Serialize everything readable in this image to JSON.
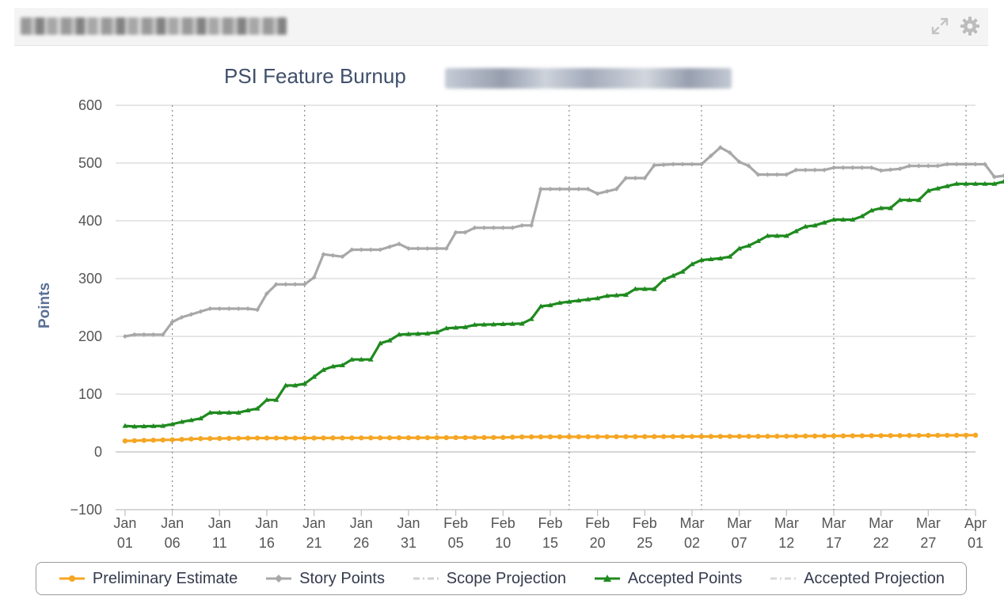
{
  "header": {
    "title": "",
    "icons": [
      "expand-icon",
      "gear-icon"
    ]
  },
  "chart_data": {
    "type": "line",
    "title": "PSI Feature Burnup",
    "ylabel": "Points",
    "ylim": [
      -100,
      600
    ],
    "yticks": [
      -100,
      0,
      100,
      200,
      300,
      400,
      500,
      600
    ],
    "x_tick_labels": [
      [
        "Jan",
        "01"
      ],
      [
        "Jan",
        "06"
      ],
      [
        "Jan",
        "11"
      ],
      [
        "Jan",
        "16"
      ],
      [
        "Jan",
        "21"
      ],
      [
        "Jan",
        "26"
      ],
      [
        "Jan",
        "31"
      ],
      [
        "Feb",
        "05"
      ],
      [
        "Feb",
        "10"
      ],
      [
        "Feb",
        "15"
      ],
      [
        "Feb",
        "20"
      ],
      [
        "Feb",
        "25"
      ],
      [
        "Mar",
        "02"
      ],
      [
        "Mar",
        "07"
      ],
      [
        "Mar",
        "12"
      ],
      [
        "Mar",
        "17"
      ],
      [
        "Mar",
        "22"
      ],
      [
        "Mar",
        "27"
      ],
      [
        "Apr",
        "01"
      ]
    ],
    "x_tick_dates": [
      "2014-01-01",
      "2014-01-06",
      "2014-01-11",
      "2014-01-16",
      "2014-01-21",
      "2014-01-26",
      "2014-01-31",
      "2014-02-05",
      "2014-02-10",
      "2014-02-15",
      "2014-02-20",
      "2014-02-25",
      "2014-03-02",
      "2014-03-07",
      "2014-03-12",
      "2014-03-17",
      "2014-03-22",
      "2014-03-27",
      "2014-04-01"
    ],
    "x_range": [
      "2013-12-31",
      "2014-04-01"
    ],
    "iteration_boundaries": [
      "2014-01-06",
      "2014-01-20",
      "2014-02-03",
      "2014-02-17",
      "2014-03-03",
      "2014-03-17",
      "2014-03-31"
    ],
    "grid": "horizontal",
    "legend_placement": "bottom",
    "colors": {
      "preliminary": "#f5a623",
      "story": "#a8a8a8",
      "scope_projection": "#d0d0d0",
      "accepted": "#1f8a1f",
      "accepted_projection": "#d8d8d8"
    },
    "series": [
      {
        "name": "Preliminary Estimate",
        "marker": "circle",
        "points": [
          [
            "2014-01-01",
            19
          ],
          [
            "2014-01-03",
            20
          ],
          [
            "2014-01-06",
            21
          ],
          [
            "2014-01-09",
            23
          ],
          [
            "2014-01-15",
            24
          ],
          [
            "2014-01-20",
            24
          ],
          [
            "2014-02-10",
            25
          ],
          [
            "2014-02-12",
            26
          ],
          [
            "2014-03-10",
            27
          ],
          [
            "2014-03-20",
            28
          ],
          [
            "2014-04-01",
            29
          ]
        ]
      },
      {
        "name": "Story Points",
        "marker": "diamond",
        "points": [
          [
            "2014-01-01",
            200
          ],
          [
            "2014-01-02",
            203
          ],
          [
            "2014-01-05",
            203
          ],
          [
            "2014-01-06",
            225
          ],
          [
            "2014-01-07",
            233
          ],
          [
            "2014-01-08",
            238
          ],
          [
            "2014-01-10",
            248
          ],
          [
            "2014-01-14",
            248
          ],
          [
            "2014-01-15",
            246
          ],
          [
            "2014-01-16",
            274
          ],
          [
            "2014-01-17",
            290
          ],
          [
            "2014-01-20",
            290
          ],
          [
            "2014-01-21",
            302
          ],
          [
            "2014-01-22",
            342
          ],
          [
            "2014-01-23",
            340
          ],
          [
            "2014-01-24",
            338
          ],
          [
            "2014-01-25",
            350
          ],
          [
            "2014-01-28",
            350
          ],
          [
            "2014-01-29",
            355
          ],
          [
            "2014-01-30",
            360
          ],
          [
            "2014-01-31",
            352
          ],
          [
            "2014-02-04",
            352
          ],
          [
            "2014-02-05",
            380
          ],
          [
            "2014-02-06",
            380
          ],
          [
            "2014-02-07",
            388
          ],
          [
            "2014-02-11",
            388
          ],
          [
            "2014-02-12",
            392
          ],
          [
            "2014-02-13",
            392
          ],
          [
            "2014-02-14",
            455
          ],
          [
            "2014-02-19",
            455
          ],
          [
            "2014-02-20",
            447
          ],
          [
            "2014-02-22",
            455
          ],
          [
            "2014-02-23",
            474
          ],
          [
            "2014-02-25",
            474
          ],
          [
            "2014-02-26",
            496
          ],
          [
            "2014-02-28",
            498
          ],
          [
            "2014-03-03",
            498
          ],
          [
            "2014-03-05",
            527
          ],
          [
            "2014-03-06",
            518
          ],
          [
            "2014-03-07",
            502
          ],
          [
            "2014-03-08",
            495
          ],
          [
            "2014-03-09",
            480
          ],
          [
            "2014-03-12",
            480
          ],
          [
            "2014-03-13",
            488
          ],
          [
            "2014-03-16",
            488
          ],
          [
            "2014-03-17",
            492
          ],
          [
            "2014-03-21",
            492
          ],
          [
            "2014-03-22",
            487
          ],
          [
            "2014-03-24",
            490
          ],
          [
            "2014-03-25",
            495
          ],
          [
            "2014-03-28",
            495
          ],
          [
            "2014-03-29",
            498
          ],
          [
            "2014-04-02",
            498
          ],
          [
            "2014-04-03",
            476
          ],
          [
            "2014-04-04",
            478
          ]
        ]
      },
      {
        "name": "Scope Projection",
        "marker": "none",
        "points": []
      },
      {
        "name": "Accepted Points",
        "marker": "triangle",
        "points": [
          [
            "2014-01-01",
            45
          ],
          [
            "2014-01-02",
            44
          ],
          [
            "2014-01-05",
            45
          ],
          [
            "2014-01-06",
            48
          ],
          [
            "2014-01-07",
            52
          ],
          [
            "2014-01-08",
            55
          ],
          [
            "2014-01-09",
            58
          ],
          [
            "2014-01-10",
            68
          ],
          [
            "2014-01-13",
            68
          ],
          [
            "2014-01-14",
            72
          ],
          [
            "2014-01-15",
            75
          ],
          [
            "2014-01-16",
            90
          ],
          [
            "2014-01-17",
            90
          ],
          [
            "2014-01-18",
            115
          ],
          [
            "2014-01-19",
            115
          ],
          [
            "2014-01-20",
            118
          ],
          [
            "2014-01-21",
            130
          ],
          [
            "2014-01-22",
            142
          ],
          [
            "2014-01-23",
            148
          ],
          [
            "2014-01-24",
            150
          ],
          [
            "2014-01-25",
            160
          ],
          [
            "2014-01-27",
            160
          ],
          [
            "2014-01-28",
            188
          ],
          [
            "2014-01-29",
            193
          ],
          [
            "2014-01-30",
            203
          ],
          [
            "2014-01-31",
            204
          ],
          [
            "2014-02-02",
            205
          ],
          [
            "2014-02-03",
            207
          ],
          [
            "2014-02-04",
            214
          ],
          [
            "2014-02-06",
            216
          ],
          [
            "2014-02-07",
            220
          ],
          [
            "2014-02-12",
            222
          ],
          [
            "2014-02-13",
            230
          ],
          [
            "2014-02-14",
            252
          ],
          [
            "2014-02-15",
            254
          ],
          [
            "2014-02-16",
            258
          ],
          [
            "2014-02-18",
            262
          ],
          [
            "2014-02-20",
            266
          ],
          [
            "2014-02-21",
            270
          ],
          [
            "2014-02-23",
            272
          ],
          [
            "2014-02-24",
            282
          ],
          [
            "2014-02-26",
            282
          ],
          [
            "2014-02-27",
            298
          ],
          [
            "2014-03-01",
            312
          ],
          [
            "2014-03-02",
            325
          ],
          [
            "2014-03-03",
            332
          ],
          [
            "2014-03-05",
            335
          ],
          [
            "2014-03-06",
            338
          ],
          [
            "2014-03-07",
            352
          ],
          [
            "2014-03-08",
            357
          ],
          [
            "2014-03-09",
            365
          ],
          [
            "2014-03-10",
            374
          ],
          [
            "2014-03-12",
            374
          ],
          [
            "2014-03-13",
            382
          ],
          [
            "2014-03-14",
            390
          ],
          [
            "2014-03-15",
            392
          ],
          [
            "2014-03-17",
            402
          ],
          [
            "2014-03-19",
            402
          ],
          [
            "2014-03-20",
            408
          ],
          [
            "2014-03-21",
            418
          ],
          [
            "2014-03-22",
            422
          ],
          [
            "2014-03-23",
            422
          ],
          [
            "2014-03-24",
            436
          ],
          [
            "2014-03-26",
            436
          ],
          [
            "2014-03-27",
            452
          ],
          [
            "2014-03-28",
            456
          ],
          [
            "2014-03-29",
            460
          ],
          [
            "2014-03-30",
            464
          ],
          [
            "2014-04-03",
            464
          ],
          [
            "2014-04-04",
            468
          ]
        ]
      },
      {
        "name": "Accepted Projection",
        "marker": "none",
        "points": []
      }
    ]
  }
}
